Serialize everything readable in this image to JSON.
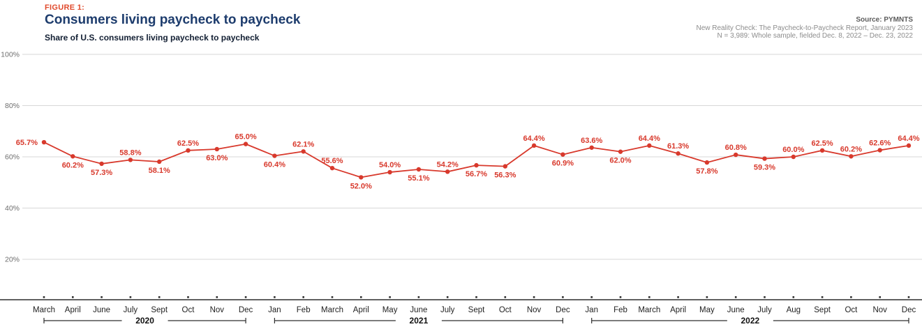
{
  "header": {
    "figure_label": "FIGURE 1:",
    "title": "Consumers living paycheck to paycheck",
    "subtitle": "Share of U.S. consumers living paycheck to paycheck"
  },
  "source": {
    "line1": "Source: PYMNTS",
    "line2": "New Reality Check: The Paycheck-to-Paycheck Report, January 2023",
    "line3": "N = 3,989: Whole sample, fielded Dec. 8, 2022 – Dec. 23, 2022"
  },
  "colors": {
    "series_red": "#d8392c",
    "figure_label_red": "#e04a2c",
    "title_navy": "#1d3c6d",
    "subtitle_dark": "#121f33",
    "grid_gray": "#d7d7d7",
    "axis_dark": "#2d2d2d",
    "month_label": "#1f1f1f",
    "year_label": "#111111",
    "ytick_gray": "#6e6e6e"
  },
  "chart_data": {
    "type": "line",
    "title": "Consumers living paycheck to paycheck",
    "subtitle": "Share of U.S. consumers living paycheck to paycheck",
    "xlabel": "",
    "ylabel": "",
    "ylim": [
      0,
      100
    ],
    "grid": true,
    "legend": "none",
    "yticks": [
      "100%",
      "80%",
      "60%",
      "40%",
      "20%"
    ],
    "ytick_values": [
      100,
      80,
      60,
      40,
      20
    ],
    "series_name": "Share of U.S. consumers living paycheck to paycheck",
    "points": [
      {
        "year": "2020",
        "month": "March",
        "value": 65.7,
        "label": "65.7%",
        "label_pos": "left"
      },
      {
        "year": "2020",
        "month": "April",
        "value": 60.2,
        "label": "60.2%",
        "label_pos": "below"
      },
      {
        "year": "2020",
        "month": "June",
        "value": 57.3,
        "label": "57.3%",
        "label_pos": "below"
      },
      {
        "year": "2020",
        "month": "July",
        "value": 58.8,
        "label": "58.8%",
        "label_pos": "above"
      },
      {
        "year": "2020",
        "month": "Sept",
        "value": 58.1,
        "label": "58.1%",
        "label_pos": "below"
      },
      {
        "year": "2020",
        "month": "Oct",
        "value": 62.5,
        "label": "62.5%",
        "label_pos": "above"
      },
      {
        "year": "2020",
        "month": "Nov",
        "value": 63.0,
        "label": "63.0%",
        "label_pos": "below"
      },
      {
        "year": "2020",
        "month": "Dec",
        "value": 65.0,
        "label": "65.0%",
        "label_pos": "above"
      },
      {
        "year": "2021",
        "month": "Jan",
        "value": 60.4,
        "label": "60.4%",
        "label_pos": "below"
      },
      {
        "year": "2021",
        "month": "Feb",
        "value": 62.1,
        "label": "62.1%",
        "label_pos": "above"
      },
      {
        "year": "2021",
        "month": "March",
        "value": 55.6,
        "label": "55.6%",
        "label_pos": "above"
      },
      {
        "year": "2021",
        "month": "April",
        "value": 52.0,
        "label": "52.0%",
        "label_pos": "below"
      },
      {
        "year": "2021",
        "month": "May",
        "value": 54.0,
        "label": "54.0%",
        "label_pos": "above"
      },
      {
        "year": "2021",
        "month": "June",
        "value": 55.1,
        "label": "55.1%",
        "label_pos": "below"
      },
      {
        "year": "2021",
        "month": "July",
        "value": 54.2,
        "label": "54.2%",
        "label_pos": "above"
      },
      {
        "year": "2021",
        "month": "Sept",
        "value": 56.7,
        "label": "56.7%",
        "label_pos": "below"
      },
      {
        "year": "2021",
        "month": "Oct",
        "value": 56.3,
        "label": "56.3%",
        "label_pos": "below"
      },
      {
        "year": "2021",
        "month": "Nov",
        "value": 64.4,
        "label": "64.4%",
        "label_pos": "above"
      },
      {
        "year": "2021",
        "month": "Dec",
        "value": 60.9,
        "label": "60.9%",
        "label_pos": "below"
      },
      {
        "year": "2022",
        "month": "Jan",
        "value": 63.6,
        "label": "63.6%",
        "label_pos": "above"
      },
      {
        "year": "2022",
        "month": "Feb",
        "value": 62.0,
        "label": "62.0%",
        "label_pos": "below"
      },
      {
        "year": "2022",
        "month": "March",
        "value": 64.4,
        "label": "64.4%",
        "label_pos": "above"
      },
      {
        "year": "2022",
        "month": "April",
        "value": 61.3,
        "label": "61.3%",
        "label_pos": "above"
      },
      {
        "year": "2022",
        "month": "May",
        "value": 57.8,
        "label": "57.8%",
        "label_pos": "below"
      },
      {
        "year": "2022",
        "month": "June",
        "value": 60.8,
        "label": "60.8%",
        "label_pos": "above"
      },
      {
        "year": "2022",
        "month": "July",
        "value": 59.3,
        "label": "59.3%",
        "label_pos": "below"
      },
      {
        "year": "2022",
        "month": "Aug",
        "value": 60.0,
        "label": "60.0%",
        "label_pos": "above"
      },
      {
        "year": "2022",
        "month": "Sept",
        "value": 62.5,
        "label": "62.5%",
        "label_pos": "above"
      },
      {
        "year": "2022",
        "month": "Oct",
        "value": 60.2,
        "label": "60.2%",
        "label_pos": "above"
      },
      {
        "year": "2022",
        "month": "Nov",
        "value": 62.6,
        "label": "62.6%",
        "label_pos": "above"
      },
      {
        "year": "2022",
        "month": "Dec",
        "value": 64.4,
        "label": "64.4%",
        "label_pos": "above"
      }
    ],
    "year_groups": [
      {
        "label": "2020",
        "from": 0,
        "to": 7
      },
      {
        "label": "2021",
        "from": 8,
        "to": 18
      },
      {
        "label": "2022",
        "from": 19,
        "to": 30
      }
    ]
  }
}
